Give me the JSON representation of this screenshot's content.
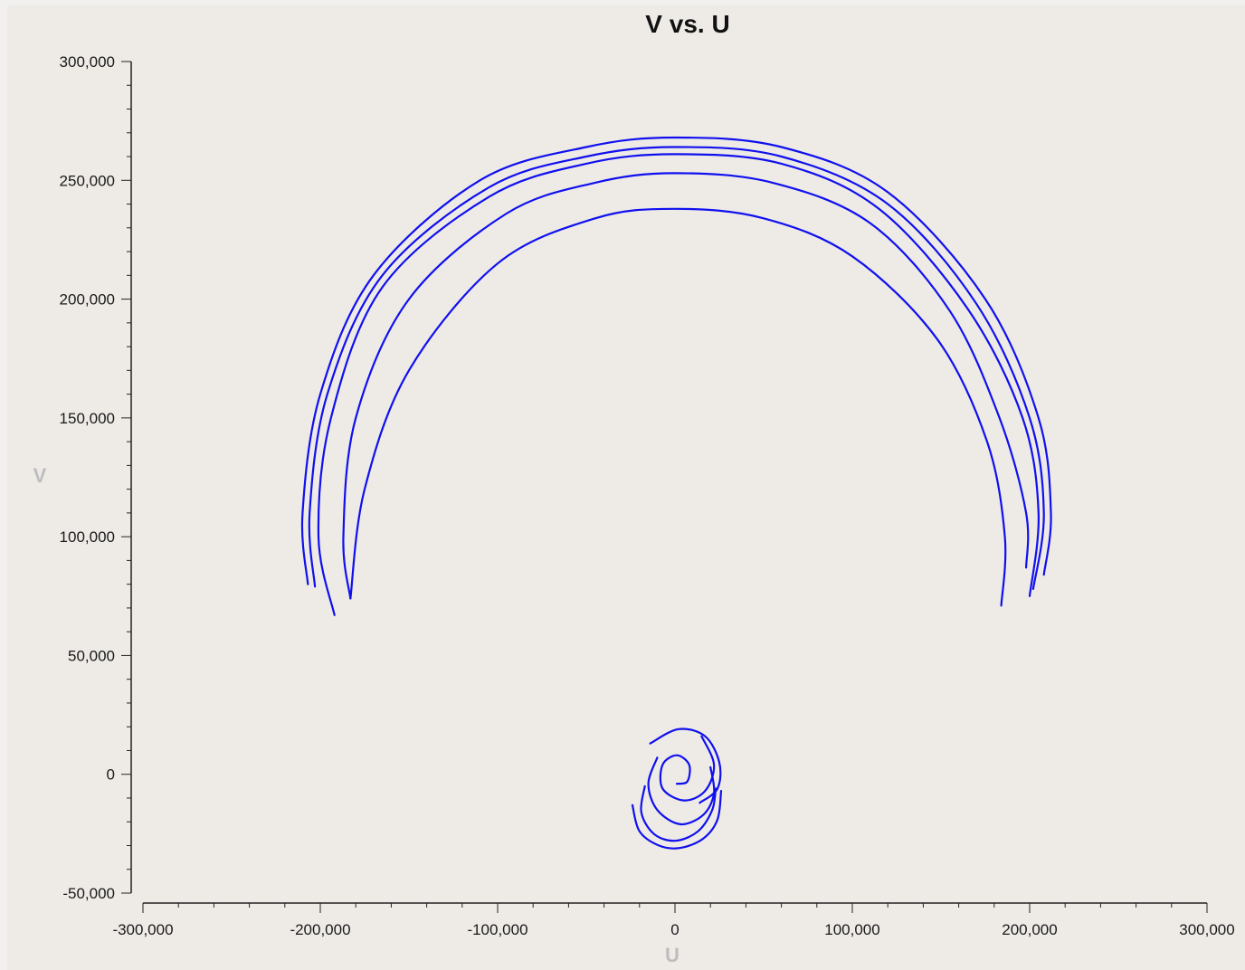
{
  "colors": {
    "background": "#eeebe7",
    "series": "#1010ee",
    "axis": "#222222",
    "axis_label": "#bdbdbd"
  },
  "chart_data": {
    "type": "scatter",
    "title": "V vs. U",
    "xlabel": "U",
    "ylabel": "V",
    "xlim": [
      -300000,
      300000
    ],
    "ylim": [
      -50000,
      300000
    ],
    "grid": false,
    "legend": "none",
    "x_ticks": [
      -300000,
      -200000,
      -100000,
      0,
      100000,
      200000,
      300000
    ],
    "x_tick_labels": [
      "-300,000",
      "-200,000",
      "-100,000",
      "0",
      "100,000",
      "200,000",
      "300,000"
    ],
    "y_ticks": [
      -50000,
      0,
      50000,
      100000,
      150000,
      200000,
      250000,
      300000
    ],
    "y_tick_labels": [
      "-50,000",
      "0",
      "50,000",
      "100,000",
      "150,000",
      "200,000",
      "250,000",
      "300,000"
    ],
    "series": [
      {
        "values": [
          {
            "x": -207000,
            "y": 80000
          },
          {
            "x": -210000,
            "y": 110000
          },
          {
            "x": -200000,
            "y": 160000
          },
          {
            "x": -170000,
            "y": 210000
          },
          {
            "x": -110000,
            "y": 250000
          },
          {
            "x": -50000,
            "y": 264000
          },
          {
            "x": 0,
            "y": 268000
          },
          {
            "x": 60000,
            "y": 264000
          },
          {
            "x": 120000,
            "y": 245000
          },
          {
            "x": 175000,
            "y": 200000
          },
          {
            "x": 205000,
            "y": 150000
          },
          {
            "x": 212000,
            "y": 110000
          },
          {
            "x": 208000,
            "y": 84000
          }
        ]
      },
      {
        "values": [
          {
            "x": -203000,
            "y": 79000
          },
          {
            "x": -206000,
            "y": 110000
          },
          {
            "x": -196000,
            "y": 160000
          },
          {
            "x": -165000,
            "y": 210000
          },
          {
            "x": -105000,
            "y": 247000
          },
          {
            "x": -50000,
            "y": 260000
          },
          {
            "x": 0,
            "y": 264000
          },
          {
            "x": 60000,
            "y": 260000
          },
          {
            "x": 120000,
            "y": 240000
          },
          {
            "x": 170000,
            "y": 198000
          },
          {
            "x": 200000,
            "y": 150000
          },
          {
            "x": 208000,
            "y": 110000
          },
          {
            "x": 202000,
            "y": 78000
          }
        ]
      },
      {
        "values": [
          {
            "x": -192000,
            "y": 67000
          },
          {
            "x": -201000,
            "y": 100000
          },
          {
            "x": -194000,
            "y": 150000
          },
          {
            "x": -165000,
            "y": 205000
          },
          {
            "x": -105000,
            "y": 243000
          },
          {
            "x": -50000,
            "y": 257000
          },
          {
            "x": 0,
            "y": 261000
          },
          {
            "x": 60000,
            "y": 257000
          },
          {
            "x": 115000,
            "y": 238000
          },
          {
            "x": 165000,
            "y": 196000
          },
          {
            "x": 196000,
            "y": 150000
          },
          {
            "x": 205000,
            "y": 110000
          },
          {
            "x": 200000,
            "y": 75000
          }
        ]
      },
      {
        "values": [
          {
            "x": -183000,
            "y": 74000
          },
          {
            "x": -187000,
            "y": 100000
          },
          {
            "x": -180000,
            "y": 150000
          },
          {
            "x": -150000,
            "y": 200000
          },
          {
            "x": -95000,
            "y": 236000
          },
          {
            "x": -45000,
            "y": 249000
          },
          {
            "x": 0,
            "y": 253000
          },
          {
            "x": 55000,
            "y": 249000
          },
          {
            "x": 110000,
            "y": 232000
          },
          {
            "x": 155000,
            "y": 195000
          },
          {
            "x": 183000,
            "y": 150000
          },
          {
            "x": 198000,
            "y": 110000
          },
          {
            "x": 198000,
            "y": 87000
          }
        ]
      },
      {
        "values": [
          {
            "x": -183000,
            "y": 74000
          },
          {
            "x": -175000,
            "y": 120000
          },
          {
            "x": -150000,
            "y": 170000
          },
          {
            "x": -100000,
            "y": 215000
          },
          {
            "x": -45000,
            "y": 234000
          },
          {
            "x": 0,
            "y": 238000
          },
          {
            "x": 50000,
            "y": 234000
          },
          {
            "x": 100000,
            "y": 218000
          },
          {
            "x": 148000,
            "y": 183000
          },
          {
            "x": 176000,
            "y": 140000
          },
          {
            "x": 186000,
            "y": 100000
          },
          {
            "x": 184000,
            "y": 71000
          }
        ]
      },
      {
        "values": [
          {
            "x": -14000,
            "y": 13000
          },
          {
            "x": 2000,
            "y": 19000
          },
          {
            "x": 17000,
            "y": 16000
          },
          {
            "x": 25000,
            "y": 5000
          },
          {
            "x": 24000,
            "y": -6000
          },
          {
            "x": 14000,
            "y": -12000
          }
        ]
      },
      {
        "values": [
          {
            "x": 15000,
            "y": 16000
          },
          {
            "x": 22000,
            "y": 4000
          },
          {
            "x": 17000,
            "y": -7000
          },
          {
            "x": 5000,
            "y": -11000
          },
          {
            "x": -7000,
            "y": -6000
          },
          {
            "x": -7000,
            "y": 4000
          },
          {
            "x": 1000,
            "y": 8000
          },
          {
            "x": 8000,
            "y": 4000
          },
          {
            "x": 7000,
            "y": -3000
          },
          {
            "x": 1000,
            "y": -4000
          }
        ]
      },
      {
        "values": [
          {
            "x": -10000,
            "y": 7000
          },
          {
            "x": -15000,
            "y": -4000
          },
          {
            "x": -10000,
            "y": -15000
          },
          {
            "x": 3000,
            "y": -21000
          },
          {
            "x": 16000,
            "y": -17000
          },
          {
            "x": 22000,
            "y": -8000
          },
          {
            "x": 20000,
            "y": 3000
          }
        ]
      },
      {
        "values": [
          {
            "x": -17000,
            "y": -5000
          },
          {
            "x": -19000,
            "y": -16000
          },
          {
            "x": -12000,
            "y": -25000
          },
          {
            "x": 0,
            "y": -28000
          },
          {
            "x": 13000,
            "y": -24000
          },
          {
            "x": 21000,
            "y": -15000
          },
          {
            "x": 23000,
            "y": -6000
          }
        ]
      },
      {
        "values": [
          {
            "x": -24000,
            "y": -13000
          },
          {
            "x": -20000,
            "y": -24000
          },
          {
            "x": -9000,
            "y": -30000
          },
          {
            "x": 3000,
            "y": -31000
          },
          {
            "x": 16000,
            "y": -27000
          },
          {
            "x": 24000,
            "y": -19000
          },
          {
            "x": 26000,
            "y": -7000
          }
        ]
      }
    ]
  }
}
